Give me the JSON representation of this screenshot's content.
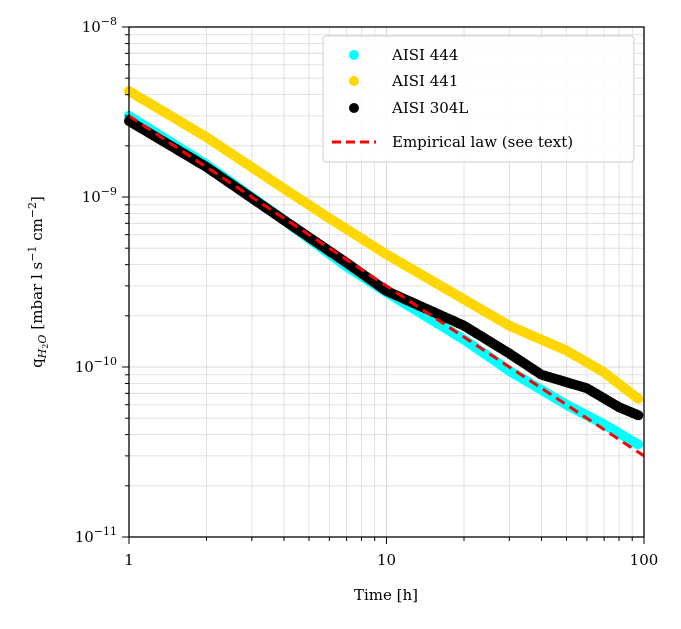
{
  "chart_data": {
    "type": "scatter",
    "x_scale": "log",
    "y_scale": "log",
    "xlim": [
      1,
      100
    ],
    "ylim": [
      1e-11,
      1e-08
    ],
    "grid": true,
    "legend_position": "top-right",
    "xlabel": "Time [h]",
    "ylabel": {
      "prefix": "q",
      "subscript": "H",
      "subscript2": "2",
      "subscript3": "O",
      "units_a": "[mbar l s",
      "exp1": "−1",
      "units_b": " cm",
      "exp2": "−2",
      "units_c": "]"
    },
    "x_ticks": [
      {
        "value": 1,
        "label": "1"
      },
      {
        "value": 10,
        "label": "10"
      },
      {
        "value": 100,
        "label": "100"
      }
    ],
    "y_ticks": [
      {
        "value": 1e-11,
        "base": "10",
        "exp": "−11"
      },
      {
        "value": 1e-10,
        "base": "10",
        "exp": "−10"
      },
      {
        "value": 1e-09,
        "base": "10",
        "exp": "−9"
      },
      {
        "value": 1e-08,
        "base": "10",
        "exp": "−8"
      }
    ],
    "series": [
      {
        "name": "AISI 444",
        "kind": "points",
        "color": "#00ffff",
        "points": [
          [
            1,
            3e-09
          ],
          [
            2,
            1.55e-09
          ],
          [
            4,
            7.3e-10
          ],
          [
            7,
            3.9e-10
          ],
          [
            10,
            2.75e-10
          ],
          [
            20,
            1.45e-10
          ],
          [
            30,
            9.5e-11
          ],
          [
            50,
            6e-11
          ],
          [
            70,
            4.6e-11
          ],
          [
            95,
            3.5e-11
          ]
        ]
      },
      {
        "name": "AISI 441",
        "kind": "points",
        "color": "#ffd700",
        "points": [
          [
            1,
            4.2e-09
          ],
          [
            2,
            2.25e-09
          ],
          [
            4,
            1.12e-09
          ],
          [
            6,
            7.5e-10
          ],
          [
            10,
            4.6e-10
          ],
          [
            20,
            2.5e-10
          ],
          [
            30,
            1.75e-10
          ],
          [
            50,
            1.25e-10
          ],
          [
            70,
            9.3e-11
          ],
          [
            95,
            6.5e-11
          ]
        ]
      },
      {
        "name": "AISI 304L",
        "kind": "points",
        "color": "#000000",
        "points": [
          [
            1,
            2.8e-09
          ],
          [
            2,
            1.5e-09
          ],
          [
            4,
            7.3e-10
          ],
          [
            7,
            4.1e-10
          ],
          [
            10,
            2.8e-10
          ],
          [
            20,
            1.75e-10
          ],
          [
            30,
            1.2e-10
          ],
          [
            40,
            9e-11
          ],
          [
            60,
            7.5e-11
          ],
          [
            80,
            5.8e-11
          ],
          [
            95,
            5.2e-11
          ]
        ]
      },
      {
        "name": "Empirical law (see text)",
        "kind": "dashed-line",
        "color": "#ff0000",
        "points": [
          [
            1,
            3e-09
          ],
          [
            100,
            3e-11
          ]
        ]
      }
    ]
  }
}
